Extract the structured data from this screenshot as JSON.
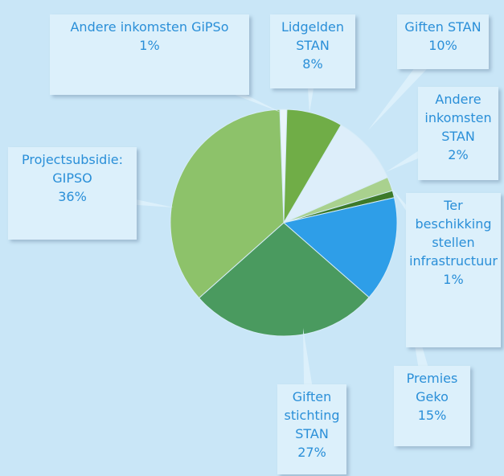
{
  "chart_data": {
    "type": "pie",
    "categories": [
      "Andere inkomsten GiPSo",
      "Lidgelden STAN",
      "Giften STAN",
      "Andere inkomsten STAN",
      "Ter beschikking stellen infrastructuur",
      "Premies Geko",
      "Giften stichting STAN",
      "Projectsubsidie: GIPSO"
    ],
    "values": [
      1,
      8,
      10,
      2,
      1,
      15,
      27,
      36
    ],
    "value_labels": [
      "1%",
      "8%",
      "10%",
      "2%",
      "1%",
      "15%",
      "27%",
      "36%"
    ],
    "colors": [
      "#eaf5fb",
      "#70ad47",
      "#ddeefa",
      "#a9d18e",
      "#3d7a2a",
      "#2e9ee8",
      "#4a9a5f",
      "#8dc26a"
    ]
  }
}
